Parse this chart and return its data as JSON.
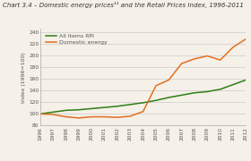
{
  "title": "Chart 3.4 – Domestic energy prices¹¹ and the Retail Prices Index, 1996-2011",
  "ylabel": "Index (1996=100)",
  "years": [
    1996,
    1997,
    1998,
    1999,
    2000,
    2001,
    2002,
    2003,
    2004,
    2005,
    2006,
    2007,
    2008,
    2009,
    2010,
    2011,
    2012
  ],
  "rpi": [
    100,
    103,
    106,
    107,
    109,
    111,
    113,
    116,
    119,
    123,
    128,
    132,
    136,
    138,
    142,
    150,
    158
  ],
  "domestic_energy": [
    100,
    99,
    95,
    93,
    95,
    95,
    94,
    96,
    104,
    148,
    158,
    186,
    194,
    199,
    192,
    214,
    228
  ],
  "rpi_color": "#2e7d18",
  "energy_color": "#e07020",
  "background_color": "#f5f0e8",
  "ylim": [
    80,
    245
  ],
  "yticks": [
    80,
    100,
    120,
    140,
    160,
    180,
    200,
    220,
    240
  ],
  "legend_rpi": "All items RPI",
  "legend_energy": "Domestic energy",
  "title_fontsize": 5.0,
  "axis_fontsize": 4.5,
  "tick_fontsize": 4.2,
  "legend_fontsize": 4.5,
  "linewidth": 1.1
}
